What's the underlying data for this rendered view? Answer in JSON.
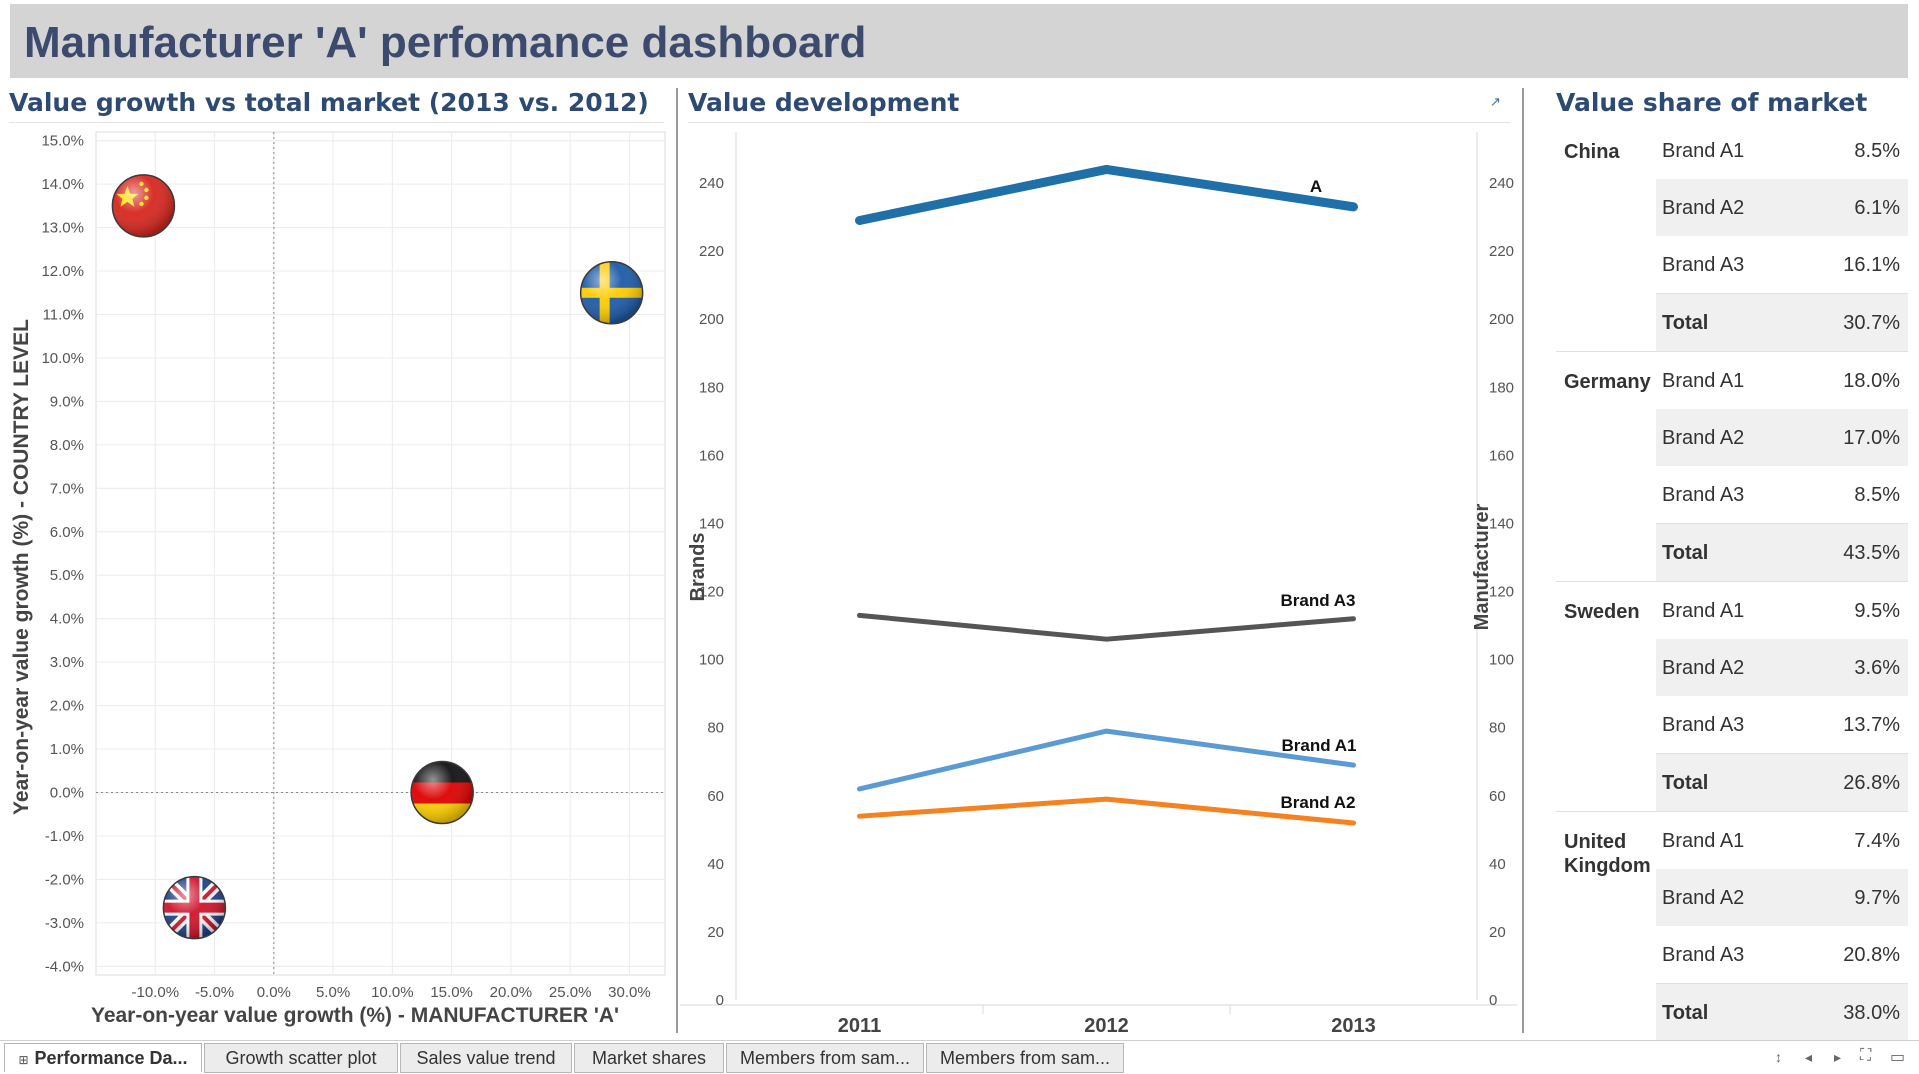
{
  "dashboard": {
    "title": "Manufacturer 'A' perfomance dashboard"
  },
  "scatter": {
    "title": "Value growth vs total market (2013 vs. 2012)",
    "xlabel": "Year-on-year value growth (%) - MANUFACTURER 'A'",
    "ylabel": "Year-on-year value growth (%) - COUNTRY LEVEL",
    "xticks": [
      "-10.0%",
      "-5.0%",
      "0.0%",
      "5.0%",
      "10.0%",
      "15.0%",
      "20.0%",
      "25.0%",
      "30.0%"
    ],
    "yticks": [
      "15.0%",
      "14.0%",
      "13.0%",
      "12.0%",
      "11.0%",
      "10.0%",
      "9.0%",
      "8.0%",
      "7.0%",
      "6.0%",
      "5.0%",
      "4.0%",
      "3.0%",
      "2.0%",
      "1.0%",
      "0.0%",
      "-1.0%",
      "-2.0%",
      "-3.0%",
      "-4.0%"
    ]
  },
  "line": {
    "title": "Value development",
    "ylabel_left": "Brands",
    "ylabel_right": "Manufacturer",
    "xticks": [
      "2011",
      "2012",
      "2013"
    ],
    "yticks": [
      "0",
      "20",
      "40",
      "60",
      "80",
      "100",
      "120",
      "140",
      "160",
      "180",
      "200",
      "220",
      "240"
    ],
    "labels": {
      "a": "A",
      "a3": "Brand A3",
      "a1": "Brand A1",
      "a2": "Brand A2"
    },
    "popout_icon": "external-link-icon"
  },
  "chart_data": [
    {
      "type": "scatter",
      "title": "Value growth vs total market (2013 vs. 2012)",
      "xlabel": "Year-on-year value growth (%) - MANUFACTURER 'A'",
      "ylabel": "Year-on-year value growth (%) - COUNTRY LEVEL",
      "xlim": [
        -15,
        33
      ],
      "ylim": [
        -4.2,
        15.2
      ],
      "points": [
        {
          "country": "China",
          "x": -11.0,
          "y": 13.5,
          "marker": "china-flag-icon"
        },
        {
          "country": "Sweden",
          "x": 28.5,
          "y": 11.5,
          "marker": "sweden-flag-icon"
        },
        {
          "country": "Germany",
          "x": 14.2,
          "y": 0.0,
          "marker": "germany-flag-icon"
        },
        {
          "country": "United Kingdom",
          "x": -6.7,
          "y": -2.65,
          "marker": "uk-flag-icon"
        }
      ]
    },
    {
      "type": "line",
      "title": "Value development",
      "x": [
        "2011",
        "2012",
        "2013"
      ],
      "ylim": [
        0,
        255
      ],
      "series": [
        {
          "name": "A",
          "axis": "Manufacturer",
          "values": [
            229,
            244,
            233
          ],
          "color": "#1f6fa8"
        },
        {
          "name": "Brand A3",
          "axis": "Brands",
          "values": [
            113,
            106,
            112
          ],
          "color": "#555555"
        },
        {
          "name": "Brand A1",
          "axis": "Brands",
          "values": [
            62,
            79,
            69
          ],
          "color": "#5b9bd5"
        },
        {
          "name": "Brand A2",
          "axis": "Brands",
          "values": [
            54,
            59,
            52
          ],
          "color": "#f58220"
        }
      ]
    }
  ],
  "share": {
    "title": "Value share of market",
    "countries": [
      {
        "name": "China",
        "rows": [
          {
            "brand": "Brand A1",
            "value": "8.5%"
          },
          {
            "brand": "Brand A2",
            "value": "6.1%"
          },
          {
            "brand": "Brand A3",
            "value": "16.1%"
          },
          {
            "brand": "Total",
            "value": "30.7%"
          }
        ]
      },
      {
        "name": "Germany",
        "rows": [
          {
            "brand": "Brand A1",
            "value": "18.0%"
          },
          {
            "brand": "Brand A2",
            "value": "17.0%"
          },
          {
            "brand": "Brand A3",
            "value": "8.5%"
          },
          {
            "brand": "Total",
            "value": "43.5%"
          }
        ]
      },
      {
        "name": "Sweden",
        "rows": [
          {
            "brand": "Brand A1",
            "value": "9.5%"
          },
          {
            "brand": "Brand A2",
            "value": "3.6%"
          },
          {
            "brand": "Brand A3",
            "value": "13.7%"
          },
          {
            "brand": "Total",
            "value": "26.8%"
          }
        ]
      },
      {
        "name": "United Kingdom",
        "rows": [
          {
            "brand": "Brand A1",
            "value": "7.4%"
          },
          {
            "brand": "Brand A2",
            "value": "9.7%"
          },
          {
            "brand": "Brand A3",
            "value": "20.8%"
          },
          {
            "brand": "Total",
            "value": "38.0%"
          }
        ]
      }
    ]
  },
  "tabs": [
    {
      "label": "Performance Da...",
      "active": true
    },
    {
      "label": "Growth scatter plot",
      "active": false
    },
    {
      "label": "Sales value trend",
      "active": false
    },
    {
      "label": "Market shares",
      "active": false
    },
    {
      "label": "Members from sam...",
      "active": false
    },
    {
      "label": "Members from sam...",
      "active": false
    }
  ],
  "navigation": {
    "icons": [
      "tab-grid-icon",
      "scroll-up-down-icon",
      "previous-icon",
      "next-icon",
      "fullscreen-icon",
      "present-icon"
    ]
  }
}
